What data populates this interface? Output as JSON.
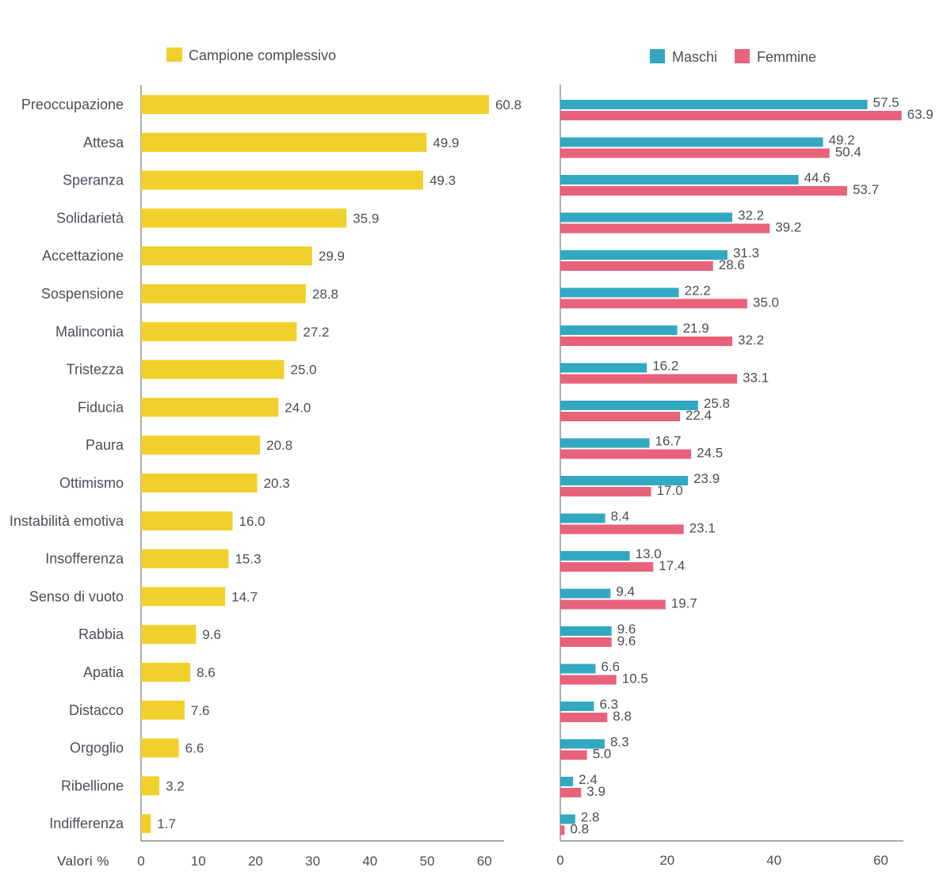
{
  "colors": {
    "total": "#f0d12b",
    "male": "#33a9c1",
    "female": "#e8627c",
    "axis": "#777777",
    "text": "#4a4f55"
  },
  "axis_unit_label": "Valori %",
  "chart_data": [
    {
      "type": "bar",
      "orientation": "horizontal",
      "categories": [
        "Preoccupazione",
        "Attesa",
        "Speranza",
        "Solidarietà",
        "Accettazione",
        "Sospensione",
        "Malinconia",
        "Tristezza",
        "Fiducia",
        "Paura",
        "Ottimismo",
        "Instabilità emotiva",
        "Insofferenza",
        "Senso di vuoto",
        "Rabbia",
        "Apatia",
        "Distacco",
        "Orgoglio",
        "Ribellione",
        "Indifferenza"
      ],
      "series": [
        {
          "name": "Campione complessivo",
          "values": [
            60.8,
            49.9,
            49.3,
            35.9,
            29.9,
            28.8,
            27.2,
            25.0,
            24.0,
            20.8,
            20.3,
            16.0,
            15.3,
            14.7,
            9.6,
            8.6,
            7.6,
            6.6,
            3.2,
            1.7
          ],
          "labels": [
            "60.8",
            "49.9",
            "49.3",
            "35.9",
            "29.9",
            "28.8",
            "27.2",
            "25.0",
            "24.0",
            "20.8",
            "20.3",
            "16.0",
            "15.3",
            "14.7",
            "9.6",
            "8.6",
            "7.6",
            "6.6",
            "3.2",
            "1.7"
          ]
        }
      ],
      "xlim": [
        0,
        63
      ],
      "xticks": [
        "0",
        "10",
        "20",
        "30",
        "40",
        "50",
        "60"
      ],
      "xlabel": "Valori %",
      "legend": "top-left",
      "grid": false
    },
    {
      "type": "bar",
      "orientation": "horizontal",
      "categories": [
        "Preoccupazione",
        "Attesa",
        "Speranza",
        "Solidarietà",
        "Accettazione",
        "Sospensione",
        "Malinconia",
        "Tristezza",
        "Fiducia",
        "Paura",
        "Ottimismo",
        "Instabilità emotiva",
        "Insofferenza",
        "Senso di vuoto",
        "Rabbia",
        "Apatia",
        "Distacco",
        "Orgoglio",
        "Ribellione",
        "Indifferenza"
      ],
      "series": [
        {
          "name": "Maschi",
          "values": [
            57.5,
            49.2,
            44.6,
            32.2,
            31.3,
            22.2,
            21.9,
            16.2,
            25.8,
            16.7,
            23.9,
            8.4,
            13.0,
            9.4,
            9.6,
            6.6,
            6.3,
            8.3,
            2.4,
            2.8
          ],
          "labels": [
            "57.5",
            "49.2",
            "44.6",
            "32.2",
            "31.3",
            "22.2",
            "21.9",
            "16.2",
            "25.8",
            "16.7",
            "23.9",
            "8.4",
            "13.0",
            "9.4",
            "9.6",
            "6.6",
            "6.3",
            "8.3",
            "2.4",
            "2.8"
          ]
        },
        {
          "name": "Femmine",
          "values": [
            63.9,
            50.4,
            53.7,
            39.2,
            28.6,
            35.0,
            32.2,
            33.1,
            22.4,
            24.5,
            17.0,
            23.1,
            17.4,
            19.7,
            9.6,
            10.5,
            8.8,
            5.0,
            3.9,
            0.8
          ],
          "labels": [
            "63.9",
            "50.4",
            "53.7",
            "39.2",
            "28.6",
            "35.0",
            "32.2",
            "33.1",
            "22.4",
            "24.5",
            "17.0",
            "23.1",
            "17.4",
            "19.7",
            "9.6",
            "10.5",
            "8.8",
            "5.0",
            "3.9",
            "0.8"
          ]
        }
      ],
      "xlim": [
        0,
        64
      ],
      "xticks": [
        "0",
        "20",
        "40",
        "60"
      ],
      "legend": "top-right",
      "grid": false
    }
  ]
}
